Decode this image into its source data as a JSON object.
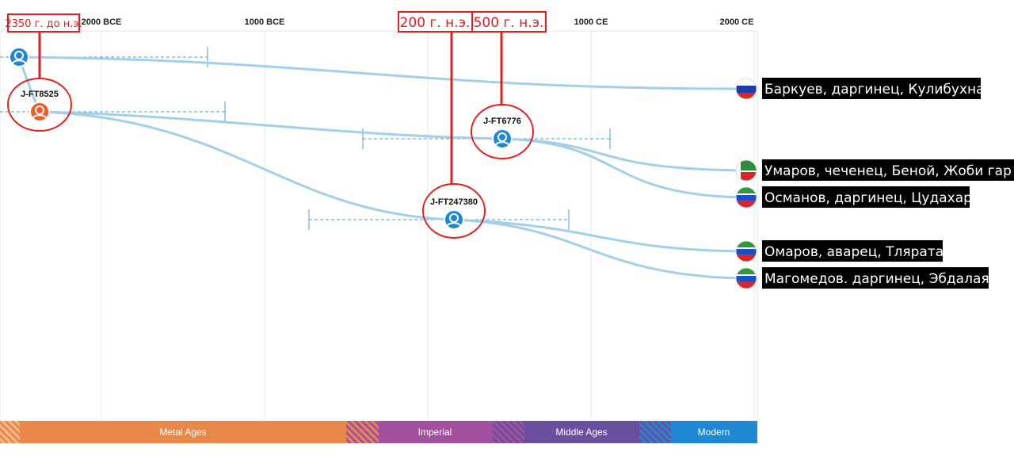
{
  "axis": {
    "ticks": [
      {
        "year": -2000,
        "label": "2000 BCE"
      },
      {
        "year": -1000,
        "label": "1000 BCE"
      },
      {
        "year": 1000,
        "label": "1000 CE"
      },
      {
        "year": 2000,
        "label": "2000 CE"
      }
    ],
    "gridlines": [
      -2000,
      -1000,
      0,
      1000,
      2000
    ]
  },
  "eras": [
    {
      "name": "Metal Ages",
      "color": "#e8894a"
    },
    {
      "name": "Imperial",
      "color": "#a3519e"
    },
    {
      "name": "Middle Ages",
      "color": "#6a4f9e"
    },
    {
      "name": "Modern",
      "color": "#1f88d4"
    }
  ],
  "nodes": [
    {
      "id": "root",
      "label": "",
      "year": -2500,
      "color": "#1f88d4"
    },
    {
      "id": "ft8525",
      "label": "J-FT8525",
      "year": -2350,
      "color": "#f05a28"
    },
    {
      "id": "ft6776",
      "label": "J-FT6776",
      "year": 500,
      "color": "#1f88d4"
    },
    {
      "id": "ft247380",
      "label": "J-FT247380",
      "year": 200,
      "color": "#1f88d4"
    }
  ],
  "annotations": [
    {
      "text": "2350 г. до н.э.",
      "target": "ft8525"
    },
    {
      "text": "200 г. н.э.",
      "target": "ft247380"
    },
    {
      "text": "500 г. н.э.",
      "target": "ft6776"
    }
  ],
  "lineages": [
    {
      "label": "Баркуев, даргинец, Кулибухна",
      "flag": "russia"
    },
    {
      "label": "Умаров, чеченец, Беной, Жоби гар",
      "flag": "chechnya"
    },
    {
      "label": "Османов, даргинец, Цудахар",
      "flag": "dagestan"
    },
    {
      "label": "Омаров, аварец, Тлярата",
      "flag": "dagestan"
    },
    {
      "label": "Магомедов. даргинец, Эбдалая",
      "flag": "dagestan"
    }
  ],
  "colors": {
    "branch": "#a3cfe8",
    "range": "#4a9cc9",
    "annotation": "#e02020"
  }
}
